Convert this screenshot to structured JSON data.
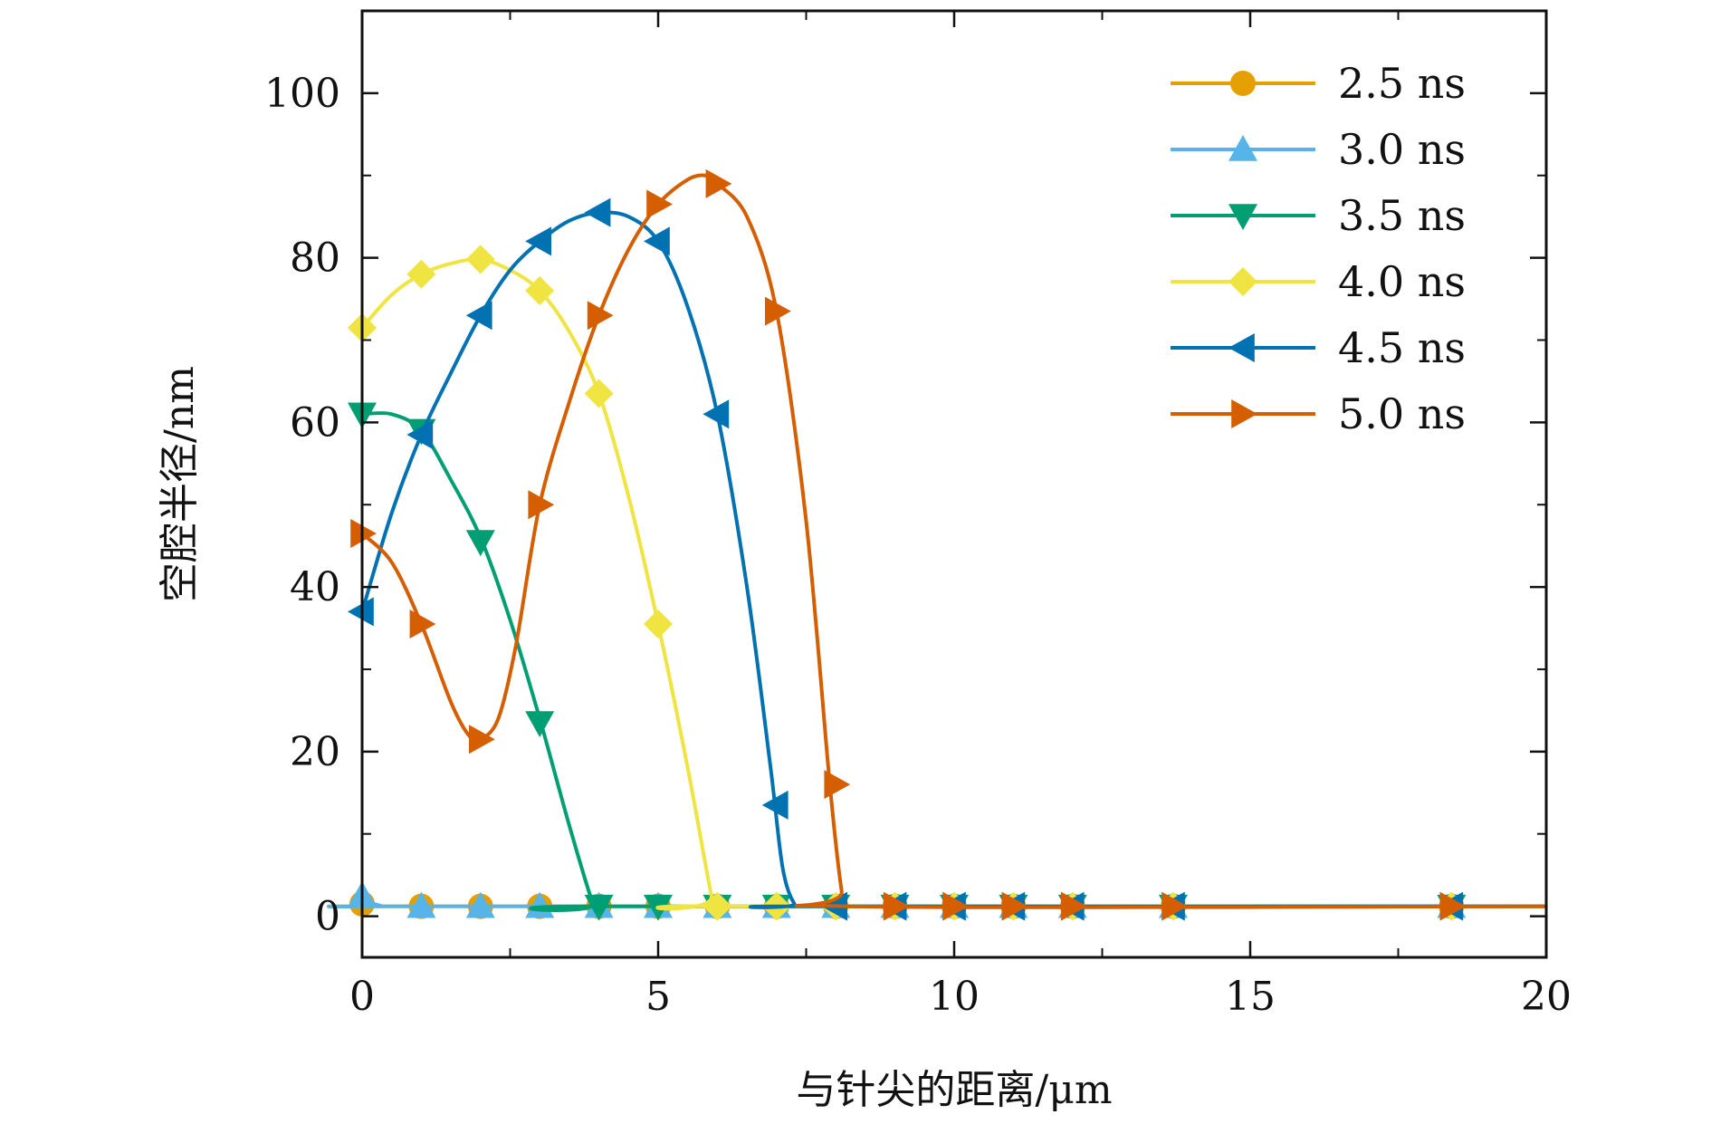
{
  "chart_data": {
    "type": "line",
    "title": "",
    "xlabel": "与针尖的距离/μm",
    "ylabel": "空腔半径/nm",
    "xlim": [
      0,
      20
    ],
    "ylim": [
      -5,
      110
    ],
    "xticks": [
      0,
      5,
      10,
      15,
      20
    ],
    "yticks": [
      0,
      20,
      40,
      60,
      80,
      100
    ],
    "x_tick_labels": [
      "0",
      "5",
      "10",
      "15",
      "20"
    ],
    "y_tick_labels": [
      "0",
      "20",
      "40",
      "60",
      "80",
      "100"
    ],
    "grid": false,
    "legend_position": "top-right",
    "series": [
      {
        "name": "2.5 ns",
        "color": "#E69F00",
        "marker": "circle",
        "curve": [
          [
            0,
            1.5
          ],
          [
            0.3,
            1.2
          ],
          [
            1,
            1.2
          ],
          [
            20,
            1.2
          ]
        ],
        "markers": [
          [
            0,
            1.5
          ],
          [
            1,
            1.2
          ],
          [
            2,
            1.2
          ],
          [
            3,
            1.2
          ],
          [
            4,
            1.2
          ],
          [
            5,
            1.2
          ],
          [
            6,
            1.2
          ],
          [
            7,
            1.2
          ],
          [
            8,
            1.2
          ],
          [
            9,
            1.2
          ],
          [
            10,
            1.2
          ],
          [
            11,
            1.2
          ],
          [
            12,
            1.2
          ],
          [
            13.7,
            1.2
          ],
          [
            18.4,
            1.2
          ]
        ]
      },
      {
        "name": "3.0 ns",
        "color": "#56B4E9",
        "marker": "triangle-up",
        "curve": [
          [
            0,
            2.5
          ],
          [
            0.3,
            1.3
          ],
          [
            1,
            1.2
          ],
          [
            20,
            1.2
          ]
        ],
        "markers": [
          [
            0,
            2.5
          ],
          [
            1,
            1.2
          ],
          [
            2,
            1.2
          ],
          [
            3,
            1.2
          ],
          [
            4,
            1.2
          ],
          [
            5,
            1.2
          ],
          [
            6,
            1.2
          ],
          [
            7,
            1.2
          ],
          [
            8,
            1.2
          ],
          [
            9,
            1.2
          ],
          [
            10,
            1.2
          ],
          [
            11,
            1.2
          ],
          [
            12,
            1.2
          ],
          [
            13.7,
            1.2
          ],
          [
            18.4,
            1.2
          ]
        ]
      },
      {
        "name": "3.5 ns",
        "color": "#009E73",
        "marker": "triangle-down",
        "curve": [
          [
            0,
            61
          ],
          [
            0.5,
            61
          ],
          [
            1,
            59
          ],
          [
            1.5,
            53
          ],
          [
            2,
            46
          ],
          [
            2.5,
            36
          ],
          [
            3,
            24
          ],
          [
            3.5,
            11
          ],
          [
            3.9,
            1.5
          ],
          [
            4,
            1.2
          ],
          [
            20,
            1.2
          ]
        ],
        "markers": [
          [
            0,
            61
          ],
          [
            1,
            59
          ],
          [
            2,
            45.5
          ],
          [
            3,
            23.5
          ],
          [
            4,
            1.2
          ],
          [
            5,
            1.2
          ],
          [
            6,
            1.2
          ],
          [
            7,
            1.2
          ],
          [
            8,
            1.2
          ],
          [
            9,
            1.2
          ],
          [
            10,
            1.2
          ],
          [
            11,
            1.2
          ],
          [
            12,
            1.2
          ],
          [
            13.7,
            1.2
          ],
          [
            18.4,
            1.2
          ]
        ]
      },
      {
        "name": "4.0 ns",
        "color": "#F0E442",
        "marker": "diamond",
        "curve": [
          [
            0,
            71.5
          ],
          [
            0.5,
            75.5
          ],
          [
            1,
            78
          ],
          [
            1.5,
            79.3
          ],
          [
            2,
            79.8
          ],
          [
            2.5,
            78.5
          ],
          [
            3,
            76
          ],
          [
            3.5,
            71
          ],
          [
            4,
            63.5
          ],
          [
            4.5,
            51
          ],
          [
            5,
            35.5
          ],
          [
            5.5,
            18
          ],
          [
            5.9,
            2.5
          ],
          [
            6,
            1.2
          ],
          [
            20,
            1.2
          ]
        ],
        "markers": [
          [
            0,
            71.5
          ],
          [
            1,
            78
          ],
          [
            2,
            79.8
          ],
          [
            3,
            76
          ],
          [
            4,
            63.5
          ],
          [
            5,
            35.5
          ],
          [
            6,
            1.2
          ],
          [
            7,
            1.2
          ],
          [
            8,
            1.2
          ],
          [
            9,
            1.2
          ],
          [
            10,
            1.2
          ],
          [
            11,
            1.2
          ],
          [
            12,
            1.2
          ],
          [
            13.7,
            1.2
          ],
          [
            18.4,
            1.2
          ]
        ]
      },
      {
        "name": "4.5 ns",
        "color": "#0072B2",
        "marker": "triangle-left",
        "curve": [
          [
            0,
            37
          ],
          [
            0.5,
            49
          ],
          [
            1,
            58.5
          ],
          [
            1.5,
            66
          ],
          [
            2,
            73
          ],
          [
            2.5,
            78.5
          ],
          [
            3,
            82
          ],
          [
            3.5,
            84.5
          ],
          [
            4,
            85.5
          ],
          [
            4.5,
            85
          ],
          [
            5,
            82
          ],
          [
            5.5,
            74
          ],
          [
            6,
            61
          ],
          [
            6.5,
            40
          ],
          [
            6.9,
            18
          ],
          [
            7.1,
            6
          ],
          [
            7.3,
            1.5
          ],
          [
            7.5,
            1.2
          ],
          [
            20,
            1.2
          ]
        ],
        "markers": [
          [
            0,
            37
          ],
          [
            1,
            58.5
          ],
          [
            2,
            73
          ],
          [
            3,
            82
          ],
          [
            4,
            85.5
          ],
          [
            5,
            82
          ],
          [
            6,
            61
          ],
          [
            7,
            13.5
          ],
          [
            8,
            1.2
          ],
          [
            9,
            1.2
          ],
          [
            10,
            1.2
          ],
          [
            11,
            1.2
          ],
          [
            12,
            1.2
          ],
          [
            13.7,
            1.2
          ],
          [
            18.4,
            1.2
          ]
        ]
      },
      {
        "name": "5.0 ns",
        "color": "#D55E00",
        "marker": "triangle-right",
        "curve": [
          [
            0,
            46.5
          ],
          [
            0.5,
            43
          ],
          [
            1,
            35.5
          ],
          [
            1.5,
            26
          ],
          [
            1.8,
            22
          ],
          [
            2,
            21.5
          ],
          [
            2.3,
            24
          ],
          [
            2.6,
            33
          ],
          [
            3,
            50
          ],
          [
            3.5,
            62.5
          ],
          [
            4,
            73
          ],
          [
            4.5,
            81
          ],
          [
            5,
            86.5
          ],
          [
            5.5,
            89.5
          ],
          [
            5.8,
            90
          ],
          [
            6,
            89
          ],
          [
            6.5,
            85
          ],
          [
            7,
            73.5
          ],
          [
            7.5,
            48
          ],
          [
            7.9,
            16
          ],
          [
            8.1,
            3
          ],
          [
            8.2,
            1.2
          ],
          [
            20,
            1.2
          ]
        ],
        "markers": [
          [
            0,
            46.5
          ],
          [
            1,
            35.5
          ],
          [
            2,
            21.5
          ],
          [
            3,
            50
          ],
          [
            4,
            73
          ],
          [
            5,
            86.5
          ],
          [
            6,
            89
          ],
          [
            7,
            73.5
          ],
          [
            8,
            16
          ],
          [
            9,
            1.2
          ],
          [
            10,
            1.2
          ],
          [
            11,
            1.2
          ],
          [
            12,
            1.2
          ],
          [
            13.7,
            1.2
          ],
          [
            18.4,
            1.2
          ]
        ]
      }
    ]
  }
}
